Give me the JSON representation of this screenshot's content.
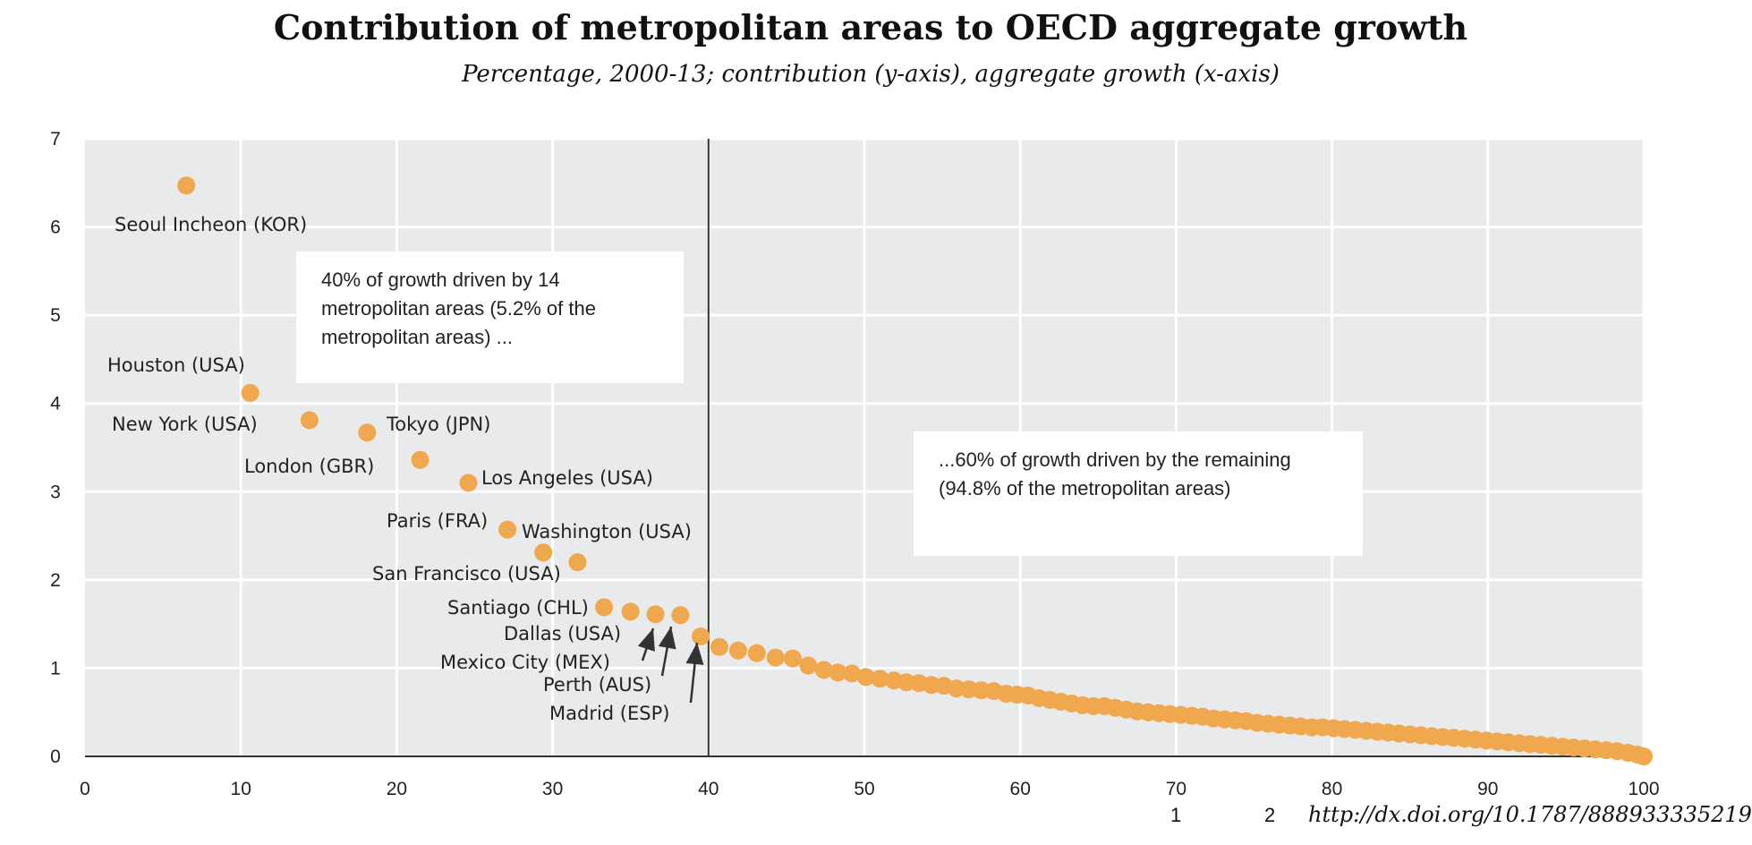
{
  "chart_data": {
    "type": "scatter",
    "title": "Contribution of metropolitan areas to OECD aggregate growth",
    "subtitle": "Percentage, 2000-13; contribution (y-axis), aggregate growth (x-axis)",
    "xlabel": "",
    "ylabel": "",
    "xlim": [
      0,
      100
    ],
    "ylim": [
      0,
      7
    ],
    "x_ticks": [
      0,
      10,
      20,
      30,
      40,
      50,
      60,
      70,
      80,
      90,
      100
    ],
    "y_ticks": [
      0,
      1,
      2,
      3,
      4,
      5,
      6,
      7
    ],
    "grid": true,
    "divider_x": 40,
    "marker_color": "#f0a84e",
    "background_color": "#e9eaeb",
    "labeled_points": [
      {
        "label": "Seoul Incheon (KOR)",
        "x": 6.5,
        "y": 6.47
      },
      {
        "label": "Houston (USA)",
        "x": 10.6,
        "y": 4.12
      },
      {
        "label": "New York (USA)",
        "x": 14.4,
        "y": 3.81
      },
      {
        "label": "Tokyo (JPN)",
        "x": 18.1,
        "y": 3.67
      },
      {
        "label": "London (GBR)",
        "x": 21.5,
        "y": 3.36
      },
      {
        "label": "Los Angeles (USA)",
        "x": 24.6,
        "y": 3.1
      },
      {
        "label": "Paris (FRA)",
        "x": 27.1,
        "y": 2.57
      },
      {
        "label": "Washington (USA)",
        "x": 29.4,
        "y": 2.31
      },
      {
        "label": "San Francisco (USA)",
        "x": 31.6,
        "y": 2.2
      },
      {
        "label": "Santiago (CHL)",
        "x": 33.3,
        "y": 1.69
      },
      {
        "label": "Dallas (USA)",
        "x": 35.0,
        "y": 1.64
      },
      {
        "label": "Mexico City (MEX)",
        "x": 36.6,
        "y": 1.61
      },
      {
        "label": "Perth (AUS)",
        "x": 38.2,
        "y": 1.6
      },
      {
        "label": "Madrid (ESP)",
        "x": 39.5,
        "y": 1.36
      }
    ],
    "other_points": [
      {
        "x": 40.7,
        "y": 1.24
      },
      {
        "x": 41.9,
        "y": 1.2
      },
      {
        "x": 43.1,
        "y": 1.17
      },
      {
        "x": 44.3,
        "y": 1.12
      },
      {
        "x": 45.4,
        "y": 1.11
      },
      {
        "x": 46.4,
        "y": 1.03
      },
      {
        "x": 47.4,
        "y": 0.98
      },
      {
        "x": 48.3,
        "y": 0.95
      },
      {
        "x": 49.2,
        "y": 0.94
      },
      {
        "x": 50.1,
        "y": 0.9
      },
      {
        "x": 51.0,
        "y": 0.88
      },
      {
        "x": 51.9,
        "y": 0.86
      },
      {
        "x": 52.7,
        "y": 0.84
      },
      {
        "x": 53.5,
        "y": 0.83
      },
      {
        "x": 54.3,
        "y": 0.81
      },
      {
        "x": 55.1,
        "y": 0.8
      },
      {
        "x": 55.9,
        "y": 0.77
      },
      {
        "x": 56.7,
        "y": 0.76
      },
      {
        "x": 57.5,
        "y": 0.75
      },
      {
        "x": 58.3,
        "y": 0.74
      },
      {
        "x": 59.1,
        "y": 0.71
      },
      {
        "x": 59.8,
        "y": 0.7
      },
      {
        "x": 60.5,
        "y": 0.69
      },
      {
        "x": 61.2,
        "y": 0.66
      },
      {
        "x": 61.9,
        "y": 0.64
      },
      {
        "x": 62.6,
        "y": 0.62
      },
      {
        "x": 63.3,
        "y": 0.6
      },
      {
        "x": 64.0,
        "y": 0.58
      },
      {
        "x": 64.7,
        "y": 0.57
      },
      {
        "x": 65.4,
        "y": 0.57
      },
      {
        "x": 66.1,
        "y": 0.55
      },
      {
        "x": 66.8,
        "y": 0.53
      },
      {
        "x": 67.5,
        "y": 0.51
      },
      {
        "x": 68.2,
        "y": 0.5
      },
      {
        "x": 68.9,
        "y": 0.49
      },
      {
        "x": 69.6,
        "y": 0.48
      },
      {
        "x": 70.3,
        "y": 0.47
      },
      {
        "x": 71.0,
        "y": 0.46
      },
      {
        "x": 71.7,
        "y": 0.45
      },
      {
        "x": 72.4,
        "y": 0.43
      },
      {
        "x": 73.1,
        "y": 0.42
      },
      {
        "x": 73.8,
        "y": 0.41
      },
      {
        "x": 74.5,
        "y": 0.4
      },
      {
        "x": 75.2,
        "y": 0.38
      },
      {
        "x": 75.9,
        "y": 0.37
      },
      {
        "x": 76.6,
        "y": 0.36
      },
      {
        "x": 77.3,
        "y": 0.35
      },
      {
        "x": 78.0,
        "y": 0.34
      },
      {
        "x": 78.7,
        "y": 0.33
      },
      {
        "x": 79.4,
        "y": 0.33
      },
      {
        "x": 80.1,
        "y": 0.32
      },
      {
        "x": 80.8,
        "y": 0.31
      },
      {
        "x": 81.5,
        "y": 0.3
      },
      {
        "x": 82.2,
        "y": 0.29
      },
      {
        "x": 82.9,
        "y": 0.28
      },
      {
        "x": 83.6,
        "y": 0.27
      },
      {
        "x": 84.3,
        "y": 0.26
      },
      {
        "x": 85.0,
        "y": 0.25
      },
      {
        "x": 85.7,
        "y": 0.24
      },
      {
        "x": 86.4,
        "y": 0.23
      },
      {
        "x": 87.1,
        "y": 0.22
      },
      {
        "x": 87.8,
        "y": 0.21
      },
      {
        "x": 88.5,
        "y": 0.2
      },
      {
        "x": 89.2,
        "y": 0.19
      },
      {
        "x": 89.9,
        "y": 0.18
      },
      {
        "x": 90.6,
        "y": 0.17
      },
      {
        "x": 91.3,
        "y": 0.16
      },
      {
        "x": 92.0,
        "y": 0.15
      },
      {
        "x": 92.7,
        "y": 0.14
      },
      {
        "x": 93.4,
        "y": 0.13
      },
      {
        "x": 94.1,
        "y": 0.12
      },
      {
        "x": 94.8,
        "y": 0.11
      },
      {
        "x": 95.5,
        "y": 0.1
      },
      {
        "x": 96.2,
        "y": 0.09
      },
      {
        "x": 96.9,
        "y": 0.08
      },
      {
        "x": 97.6,
        "y": 0.07
      },
      {
        "x": 98.3,
        "y": 0.06
      },
      {
        "x": 99.0,
        "y": 0.04
      },
      {
        "x": 99.6,
        "y": 0.02
      },
      {
        "x": 100.0,
        "y": 0.0
      }
    ],
    "annotations": {
      "left_box": [
        "40% of growth driven by 14",
        "metropolitan areas (5.2% of the",
        "metropolitan areas) ..."
      ],
      "right_box": [
        "...60% of growth driven by the remaining",
        "(94.8% of the metropolitan areas)"
      ]
    }
  },
  "footer": {
    "note1": "1",
    "note2": "2",
    "doi": "http://dx.doi.org/10.1787/888933335219"
  }
}
